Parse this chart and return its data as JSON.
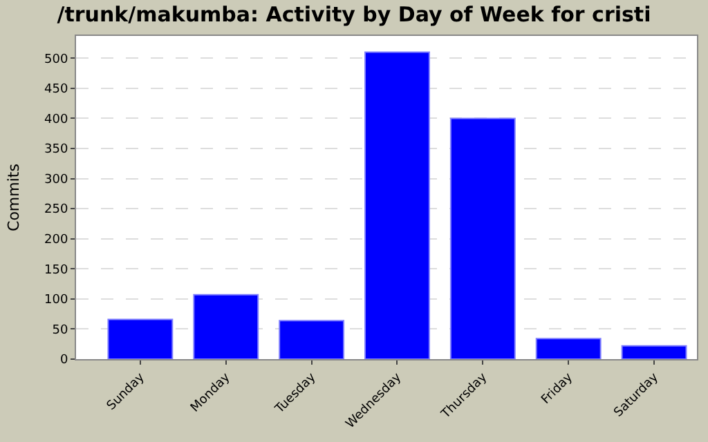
{
  "chart_data": {
    "type": "bar",
    "title": "/trunk/makumba: Activity by Day of Week for cristi",
    "ylabel": "Commits",
    "categories": [
      "Sunday",
      "Monday",
      "Tuesday",
      "Wednesday",
      "Thursday",
      "Friday",
      "Saturday"
    ],
    "values": [
      66,
      107,
      64,
      510,
      400,
      34,
      22
    ],
    "color": "#0000ff",
    "ylim": [
      0,
      537
    ],
    "yticks": [
      0,
      50,
      100,
      150,
      200,
      250,
      300,
      350,
      400,
      450,
      500
    ],
    "grid": "y"
  }
}
